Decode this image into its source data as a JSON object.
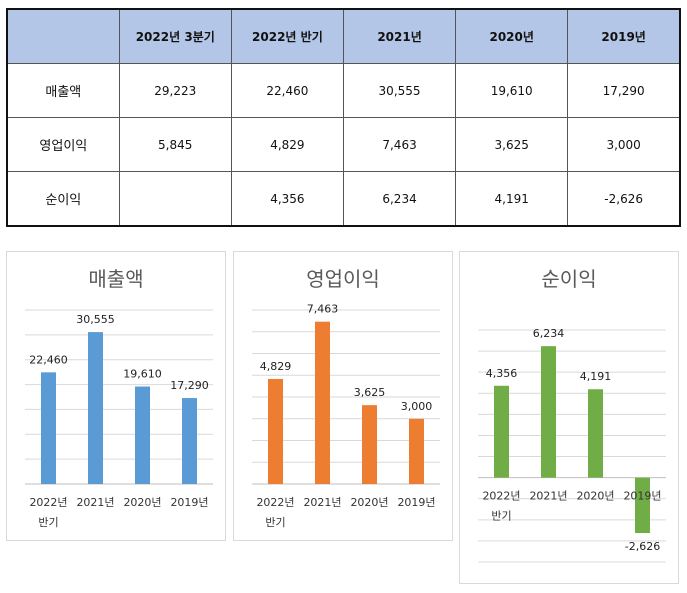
{
  "table": {
    "header": [
      "",
      "2022년 3분기",
      "2022년 반기",
      "2021년",
      "2020년",
      "2019년"
    ],
    "rows": [
      {
        "label": "매출액",
        "cells": [
          "29,223",
          "22,460",
          "30,555",
          "19,610",
          "17,290"
        ]
      },
      {
        "label": "영업이익",
        "cells": [
          "5,845",
          "4,829",
          "7,463",
          "3,625",
          "3,000"
        ]
      },
      {
        "label": "순이익",
        "cells": [
          "",
          "4,356",
          "6,234",
          "4,191",
          "-2,626"
        ]
      }
    ]
  },
  "chart_data": [
    {
      "type": "bar",
      "title": "매출액",
      "categories": [
        "2022년 반기",
        "2021년",
        "2020년",
        "2019년"
      ],
      "values": [
        22460,
        30555,
        19610,
        17290
      ],
      "labels": [
        "22,460",
        "30,555",
        "19,610",
        "17,290"
      ],
      "color": "#5b9bd5",
      "ylim": [
        0,
        35000
      ],
      "grid": true
    },
    {
      "type": "bar",
      "title": "영업이익",
      "categories": [
        "2022년 반기",
        "2021년",
        "2020년",
        "2019년"
      ],
      "values": [
        4829,
        7463,
        3625,
        3000
      ],
      "labels": [
        "4,829",
        "7,463",
        "3,625",
        "3,000"
      ],
      "color": "#ed7d31",
      "ylim": [
        0,
        8000
      ],
      "grid": true
    },
    {
      "type": "bar",
      "title": "순이익",
      "categories": [
        "2022년 반기",
        "2021년",
        "2020년",
        "2019년"
      ],
      "values": [
        4356,
        6234,
        4191,
        -2626
      ],
      "labels": [
        "4,356",
        "6,234",
        "4,191",
        "-2,626"
      ],
      "color": "#70ad47",
      "ylim": [
        -4000,
        7000
      ],
      "grid": true
    }
  ]
}
